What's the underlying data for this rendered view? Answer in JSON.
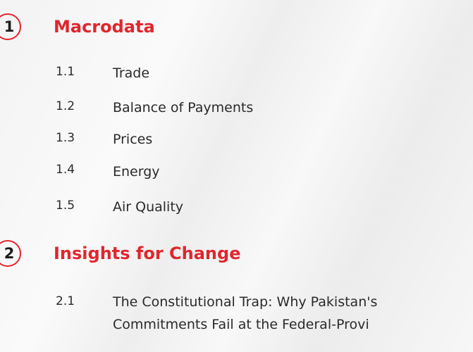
{
  "sections": [
    {
      "number": "1",
      "title": "Macrodata",
      "items": [
        {
          "number": "1.1",
          "title": "Trade"
        },
        {
          "number": "1.2",
          "title": "Balance of Payments"
        },
        {
          "number": "1.3",
          "title": "Prices"
        },
        {
          "number": "1.4",
          "title": "Energy"
        },
        {
          "number": "1.5",
          "title": "Air Quality"
        }
      ]
    },
    {
      "number": "2",
      "title": "Insights for Change",
      "items": [
        {
          "number": "2.1",
          "title_lines": [
            "The Constitutional Trap: Why Pakistan's",
            "Commitments Fail at the Federal-Provi"
          ]
        }
      ]
    }
  ]
}
